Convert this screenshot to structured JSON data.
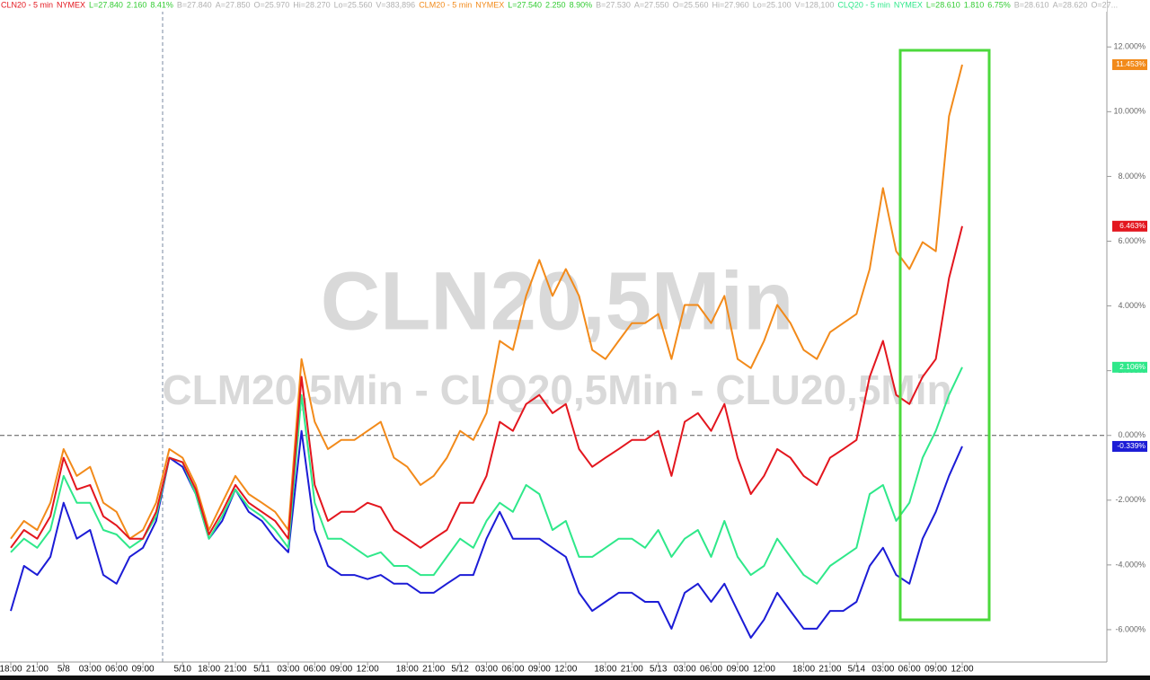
{
  "chart_data": {
    "type": "line",
    "watermark": [
      "CLN20,5Min",
      "CLM20,5Min - CLQ20,5Min - CLU20,5Min"
    ],
    "categories": [
      "18:00",
      null,
      "21:00",
      null,
      "5/8",
      null,
      "03:00",
      null,
      "06:00",
      null,
      "09:00",
      null,
      null,
      "5/10",
      null,
      "18:00",
      null,
      "21:00",
      null,
      "5/11",
      null,
      "03:00",
      null,
      "06:00",
      null,
      "09:00",
      null,
      "12:00",
      null,
      null,
      "18:00",
      null,
      "21:00",
      null,
      "5/12",
      null,
      "03:00",
      null,
      "06:00",
      null,
      "09:00",
      null,
      "12:00",
      null,
      null,
      "18:00",
      null,
      "21:00",
      null,
      "5/13",
      null,
      "03:00",
      null,
      "06:00",
      null,
      "09:00",
      null,
      "12:00",
      null,
      null,
      "18:00",
      null,
      "21:00",
      null,
      "5/14",
      null,
      "03:00",
      null,
      "06:00",
      null,
      "09:00",
      null,
      "12:00"
    ],
    "ylim": [
      -7,
      13.45
    ],
    "yticks": [
      {
        "value": 12,
        "label": "12.000%"
      },
      {
        "value": 10,
        "label": "10.000%"
      },
      {
        "value": 8,
        "label": "8.000%"
      },
      {
        "value": 6,
        "label": "6.000%"
      },
      {
        "value": 4,
        "label": "4.000%"
      },
      {
        "value": 2,
        "label": "2.000%"
      },
      {
        "value": 0,
        "label": "0.000%"
      },
      {
        "value": -2,
        "label": "-2.000%"
      },
      {
        "value": -4,
        "label": "-4.000%"
      },
      {
        "value": -6,
        "label": "-6.000%"
      }
    ],
    "grid": false,
    "series": [
      {
        "name": "CLN20 - 5 min",
        "exchange": "NYMEX",
        "color": "#e3161e",
        "quote": [
          "L=27.840",
          "2.160",
          "8.41%",
          "B=27.840",
          "A=27.850",
          "O=25.970",
          "Hi=28.270",
          "Lo=25.560",
          "V=383,896"
        ],
        "values": [
          -3.47,
          -2.92,
          -3.19,
          -2.5,
          -0.69,
          -1.67,
          -1.53,
          -2.5,
          -2.78,
          -3.19,
          -3.19,
          -2.36,
          -0.69,
          -0.83,
          -1.67,
          -3.06,
          -2.36,
          -1.53,
          -2.08,
          -2.36,
          -2.64,
          -3.19,
          1.81,
          -1.53,
          -2.64,
          -2.36,
          -2.36,
          -2.08,
          -2.22,
          -2.92,
          -3.19,
          -3.47,
          -3.19,
          -2.92,
          -2.08,
          -2.08,
          -1.25,
          0.42,
          0.14,
          0.97,
          1.25,
          0.69,
          0.97,
          -0.42,
          -0.97,
          -0.69,
          -0.42,
          -0.14,
          -0.14,
          0.14,
          -1.25,
          0.42,
          0.69,
          0.14,
          0.97,
          -0.69,
          -1.81,
          -1.25,
          -0.42,
          -0.69,
          -1.25,
          -1.53,
          -0.69,
          -0.42,
          -0.14,
          1.81,
          2.92,
          1.25,
          0.97,
          1.81,
          2.36,
          4.86,
          6.463
        ],
        "value_labels": [
          null,
          null,
          null,
          null,
          null,
          null,
          null,
          null,
          null,
          null,
          null,
          null,
          null,
          null,
          null,
          null,
          null,
          null,
          null,
          null,
          null,
          null,
          null,
          null,
          null,
          null,
          null,
          null,
          null,
          null,
          null,
          null,
          null,
          null,
          null,
          null,
          null,
          null,
          null,
          null,
          null,
          null,
          null,
          null,
          null,
          null,
          null,
          null,
          null,
          null,
          null,
          null,
          null,
          null,
          null,
          null,
          null,
          null,
          null,
          null,
          null,
          null,
          null,
          null,
          null,
          null,
          null,
          null,
          null,
          null,
          null,
          null,
          "6.463%"
        ]
      },
      {
        "name": "CLM20 - 5 min",
        "exchange": "NYMEX",
        "color": "#f28a1a",
        "quote": [
          "L=27.540",
          "2.250",
          "8.90%",
          "B=27.530",
          "A=27.550",
          "O=25.560",
          "Hi=27.960",
          "Lo=25.100",
          "V=128,100"
        ],
        "values": [
          -3.19,
          -2.64,
          -2.92,
          -2.08,
          -0.42,
          -1.25,
          -0.97,
          -2.08,
          -2.36,
          -3.19,
          -2.92,
          -2.08,
          -0.42,
          -0.69,
          -1.53,
          -2.92,
          -2.08,
          -1.25,
          -1.81,
          -2.08,
          -2.36,
          -2.92,
          2.36,
          0.42,
          -0.42,
          -0.14,
          -0.14,
          0.14,
          0.42,
          -0.69,
          -0.97,
          -1.53,
          -1.25,
          -0.69,
          0.14,
          -0.14,
          0.69,
          2.92,
          2.64,
          4.31,
          5.42,
          4.31,
          5.14,
          4.31,
          2.64,
          2.36,
          2.92,
          3.47,
          3.47,
          3.75,
          2.36,
          4.03,
          4.03,
          3.47,
          4.31,
          2.36,
          2.08,
          2.92,
          4.03,
          3.47,
          2.64,
          2.36,
          3.19,
          3.47,
          3.75,
          5.14,
          7.64,
          5.69,
          5.14,
          5.97,
          5.69,
          9.86,
          11.453
        ],
        "value_labels": [
          null,
          null,
          null,
          null,
          null,
          null,
          null,
          null,
          null,
          null,
          null,
          null,
          null,
          null,
          null,
          null,
          null,
          null,
          null,
          null,
          null,
          null,
          null,
          null,
          null,
          null,
          null,
          null,
          null,
          null,
          null,
          null,
          null,
          null,
          null,
          null,
          null,
          null,
          null,
          null,
          null,
          null,
          null,
          null,
          null,
          null,
          null,
          null,
          null,
          null,
          null,
          null,
          null,
          null,
          null,
          null,
          null,
          null,
          null,
          null,
          null,
          null,
          null,
          null,
          null,
          null,
          null,
          null,
          null,
          null,
          null,
          null,
          "11.453%"
        ]
      },
      {
        "name": "CLQ20 - 5 min",
        "exchange": "NYMEX",
        "color": "#2fe88a",
        "quote": [
          "L=28.610",
          "1.810",
          "6.75%",
          "B=28.610",
          "A=28.620",
          "O=27..."
        ],
        "values": [
          -3.61,
          -3.19,
          -3.47,
          -2.92,
          -1.25,
          -2.08,
          -2.08,
          -2.92,
          -3.06,
          -3.47,
          -3.19,
          -2.5,
          -0.69,
          -0.83,
          -1.81,
          -3.19,
          -2.5,
          -1.67,
          -2.22,
          -2.5,
          -2.92,
          -3.47,
          1.25,
          -2.08,
          -3.19,
          -3.19,
          -3.47,
          -3.75,
          -3.61,
          -4.03,
          -4.03,
          -4.31,
          -4.31,
          -3.75,
          -3.19,
          -3.47,
          -2.64,
          -2.08,
          -2.36,
          -1.53,
          -1.81,
          -2.92,
          -2.64,
          -3.75,
          -3.75,
          -3.47,
          -3.19,
          -3.19,
          -3.47,
          -2.92,
          -3.75,
          -3.19,
          -2.92,
          -3.75,
          -2.64,
          -3.75,
          -4.31,
          -4.03,
          -3.19,
          -3.75,
          -4.31,
          -4.58,
          -4.03,
          -3.75,
          -3.47,
          -1.81,
          -1.53,
          -2.64,
          -2.08,
          -0.69,
          0.14,
          1.25,
          2.106
        ],
        "value_labels": [
          null,
          null,
          null,
          null,
          null,
          null,
          null,
          null,
          null,
          null,
          null,
          null,
          null,
          null,
          null,
          null,
          null,
          null,
          null,
          null,
          null,
          null,
          null,
          null,
          null,
          null,
          null,
          null,
          null,
          null,
          null,
          null,
          null,
          null,
          null,
          null,
          null,
          null,
          null,
          null,
          null,
          null,
          null,
          null,
          null,
          null,
          null,
          null,
          null,
          null,
          null,
          null,
          null,
          null,
          null,
          null,
          null,
          null,
          null,
          null,
          null,
          null,
          null,
          null,
          null,
          null,
          null,
          null,
          null,
          null,
          null,
          null,
          "2.106%"
        ]
      },
      {
        "color": "#1c1cd6",
        "values": [
          -5.42,
          -4.03,
          -4.31,
          -3.75,
          -2.08,
          -3.19,
          -2.92,
          -4.31,
          -4.58,
          -3.75,
          -3.47,
          -2.64,
          -0.69,
          -0.97,
          -1.81,
          -3.19,
          -2.64,
          -1.67,
          -2.36,
          -2.64,
          -3.19,
          -3.61,
          0.14,
          -2.92,
          -4.03,
          -4.31,
          -4.31,
          -4.44,
          -4.31,
          -4.58,
          -4.58,
          -4.86,
          -4.86,
          -4.58,
          -4.31,
          -4.31,
          -3.19,
          -2.36,
          -3.19,
          -3.19,
          -3.19,
          -3.47,
          -3.75,
          -4.86,
          -5.42,
          -5.14,
          -4.86,
          -4.86,
          -5.14,
          -5.14,
          -5.97,
          -4.86,
          -4.58,
          -5.14,
          -4.58,
          -5.42,
          -6.25,
          -5.69,
          -4.86,
          -5.42,
          -5.97,
          -5.97,
          -5.42,
          -5.42,
          -5.14,
          -4.03,
          -3.47,
          -4.31,
          -4.58,
          -3.19,
          -2.36,
          -1.25,
          -0.339
        ],
        "value_labels": [
          null,
          null,
          null,
          null,
          null,
          null,
          null,
          null,
          null,
          null,
          null,
          null,
          null,
          null,
          null,
          null,
          null,
          null,
          null,
          null,
          null,
          null,
          null,
          null,
          null,
          null,
          null,
          null,
          null,
          null,
          null,
          null,
          null,
          null,
          null,
          null,
          null,
          null,
          null,
          null,
          null,
          null,
          null,
          null,
          null,
          null,
          null,
          null,
          null,
          null,
          null,
          null,
          null,
          null,
          null,
          null,
          null,
          null,
          null,
          null,
          null,
          null,
          null,
          null,
          null,
          null,
          null,
          null,
          null,
          null,
          null,
          null,
          "-0.339%"
        ]
      }
    ]
  }
}
